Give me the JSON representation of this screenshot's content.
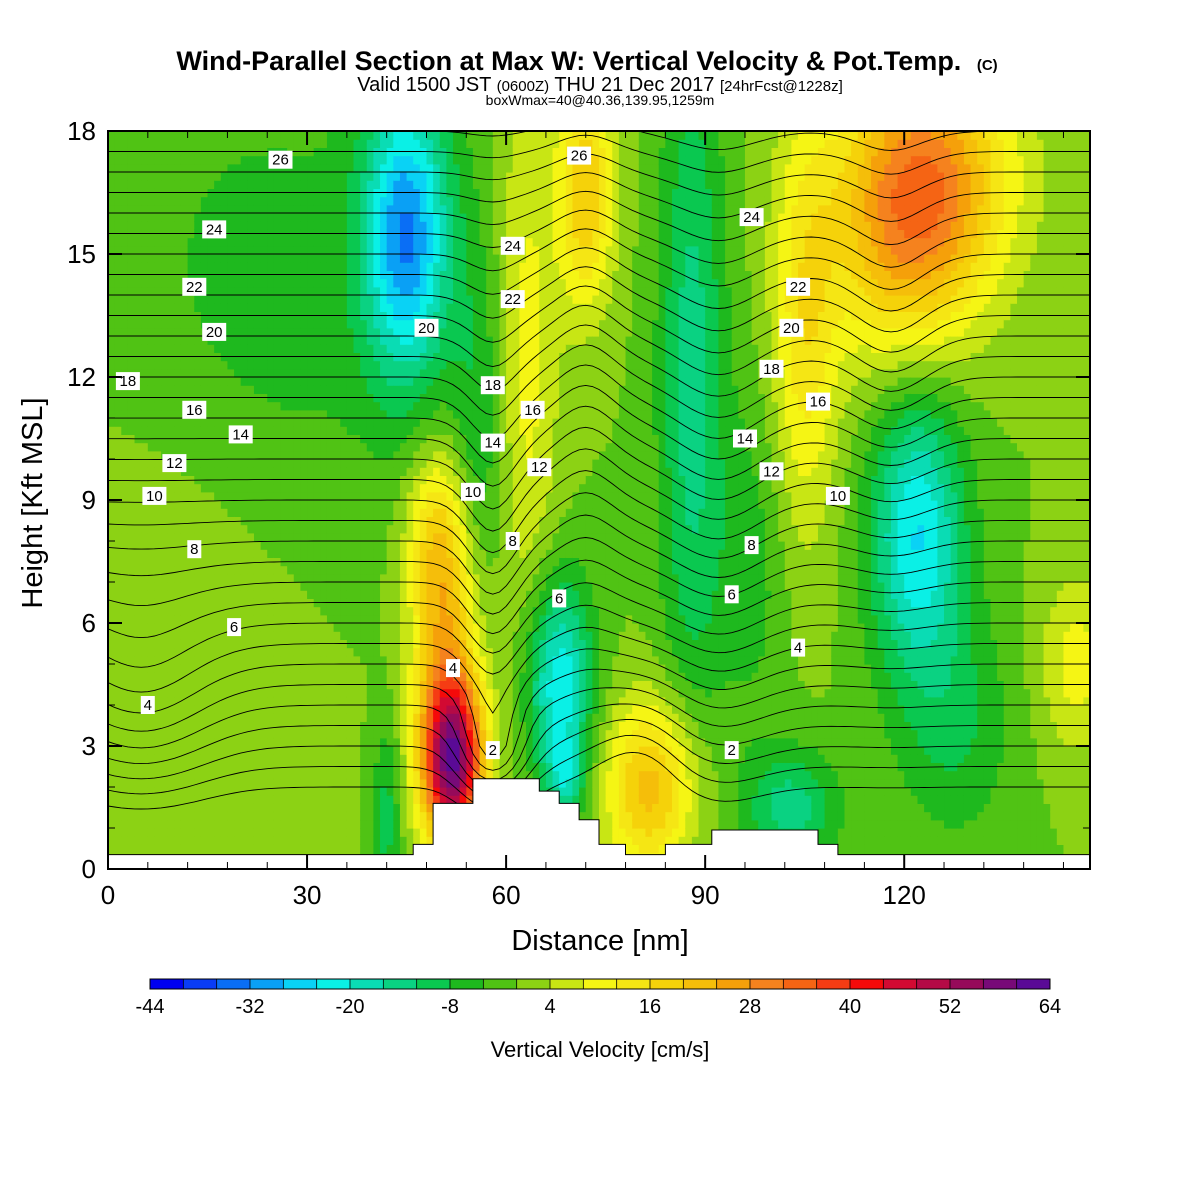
{
  "chart_data": {
    "type": "heatmap",
    "title": "Wind-Parallel Section at Max W: Vertical Velocity & Pot.Temp.",
    "title_suffix": "(C)",
    "subtitle_parts": {
      "p1": "Valid 1500 JST ",
      "p2": "(0600Z)",
      "p3": " THU 21 Dec 2017 ",
      "p4": "[24hrFcst@1228z]"
    },
    "subtitle2": "boxWmax=40@40.36,139.95,1259m",
    "xlabel": "Distance [nm]",
    "ylabel": "Height [Kft MSL]",
    "xlim": [
      0,
      148
    ],
    "ylim": [
      0,
      18
    ],
    "x_ticks": [
      0,
      30,
      60,
      90,
      120
    ],
    "y_ticks": [
      0,
      3,
      6,
      9,
      12,
      15,
      18
    ],
    "colorbar": {
      "label": "Vertical Velocity [cm/s]",
      "min": -44,
      "step": 4,
      "tick_labels": [
        "-44",
        "-32",
        "-20",
        "-8",
        "4",
        "16",
        "28",
        "40",
        "52",
        "64"
      ],
      "colors": [
        "#0000f0",
        "#0a3cf5",
        "#0a6ef5",
        "#0aa0f5",
        "#0ad2f5",
        "#0af0e6",
        "#0adcb4",
        "#0ad282",
        "#0ac850",
        "#1eb91e",
        "#50c314",
        "#8cd214",
        "#c8e614",
        "#f5f514",
        "#f5e614",
        "#f5d20a",
        "#f5be0a",
        "#f5a00a",
        "#f5821e",
        "#f56414",
        "#f53c14",
        "#f50a0a",
        "#d20a32",
        "#b40a46",
        "#960a5a",
        "#780a78",
        "#5a0a96"
      ]
    },
    "terrain_kft": [
      [
        0,
        0.35
      ],
      [
        46,
        0.35
      ],
      [
        46,
        0.6
      ],
      [
        49,
        0.6
      ],
      [
        49,
        1.6
      ],
      [
        55,
        1.6
      ],
      [
        55,
        2.2
      ],
      [
        65,
        2.2
      ],
      [
        65,
        1.9
      ],
      [
        68,
        1.9
      ],
      [
        68,
        1.6
      ],
      [
        71,
        1.6
      ],
      [
        71,
        1.2
      ],
      [
        74,
        1.2
      ],
      [
        74,
        0.6
      ],
      [
        78,
        0.6
      ],
      [
        78,
        0.35
      ],
      [
        84,
        0.35
      ],
      [
        84,
        0.6
      ],
      [
        91,
        0.6
      ],
      [
        91,
        0.95
      ],
      [
        107,
        0.95
      ],
      [
        107,
        0.6
      ],
      [
        110,
        0.6
      ],
      [
        110,
        0.35
      ],
      [
        148,
        0.35
      ]
    ],
    "velocity_features": [
      {
        "x": 52,
        "y": 2.6,
        "sx": 3.2,
        "sy": 1.4,
        "amp": 52
      },
      {
        "x": 51,
        "y": 5.6,
        "sx": 3.5,
        "sy": 2.6,
        "amp": 22
      },
      {
        "x": 49,
        "y": 8.2,
        "sx": 3.0,
        "sy": 1.4,
        "amp": 10
      },
      {
        "x": 82,
        "y": 2.0,
        "sx": 5.0,
        "sy": 1.5,
        "amp": 22
      },
      {
        "x": 72,
        "y": 16.5,
        "sx": 3.0,
        "sy": 2.0,
        "amp": 20
      },
      {
        "x": 63,
        "y": 12.5,
        "sx": 3.5,
        "sy": 5.0,
        "amp": 10
      },
      {
        "x": 105,
        "y": 13.0,
        "sx": 3.5,
        "sy": 3.5,
        "amp": 14
      },
      {
        "x": 123,
        "y": 17.0,
        "sx": 9.0,
        "sy": 2.0,
        "amp": 28
      },
      {
        "x": 120,
        "y": 14.5,
        "sx": 8.0,
        "sy": 2.0,
        "amp": 14
      },
      {
        "x": 146,
        "y": 5.0,
        "sx": 4.0,
        "sy": 1.5,
        "amp": 10
      },
      {
        "x": 8,
        "y": 5.0,
        "sx": 14.0,
        "sy": 5.0,
        "amp": 4
      },
      {
        "x": 45,
        "y": 15.5,
        "sx": 4.5,
        "sy": 2.5,
        "amp": -30
      },
      {
        "x": 56,
        "y": 10.5,
        "sx": 3.0,
        "sy": 3.5,
        "amp": -8
      },
      {
        "x": 68,
        "y": 4.5,
        "sx": 3.5,
        "sy": 1.8,
        "amp": -24
      },
      {
        "x": 69,
        "y": 2.2,
        "sx": 2.0,
        "sy": 0.7,
        "amp": -12
      },
      {
        "x": 88,
        "y": 12.0,
        "sx": 3.5,
        "sy": 6.0,
        "amp": -14
      },
      {
        "x": 122,
        "y": 8.2,
        "sx": 5.0,
        "sy": 2.5,
        "amp": -24
      },
      {
        "x": 103,
        "y": 1.5,
        "sx": 5.0,
        "sy": 1.0,
        "amp": -14
      },
      {
        "x": 25,
        "y": 14.0,
        "sx": 18.0,
        "sy": 4.0,
        "amp": -6
      },
      {
        "x": 42,
        "y": 1.3,
        "sx": 1.5,
        "sy": 1.6,
        "amp": -10
      },
      {
        "x": 128,
        "y": 3.5,
        "sx": 6.0,
        "sy": 2.0,
        "amp": -8
      },
      {
        "x": 97,
        "y": 7.5,
        "sx": 4.0,
        "sy": 3.0,
        "amp": -6
      }
    ],
    "theta_levels": [
      2,
      4,
      6,
      8,
      10,
      12,
      14,
      16,
      18,
      20,
      22,
      24,
      26
    ],
    "contour_labels": [
      {
        "text": "26",
        "x": 26,
        "y": 17.3
      },
      {
        "text": "26",
        "x": 71,
        "y": 17.4
      },
      {
        "text": "24",
        "x": 16,
        "y": 15.6
      },
      {
        "text": "24",
        "x": 61,
        "y": 15.2
      },
      {
        "text": "24",
        "x": 97,
        "y": 15.9
      },
      {
        "text": "22",
        "x": 13,
        "y": 14.2
      },
      {
        "text": "22",
        "x": 61,
        "y": 13.9
      },
      {
        "text": "22",
        "x": 104,
        "y": 14.2
      },
      {
        "text": "20",
        "x": 16,
        "y": 13.1
      },
      {
        "text": "20",
        "x": 48,
        "y": 13.2
      },
      {
        "text": "20",
        "x": 103,
        "y": 13.2
      },
      {
        "text": "18",
        "x": 3,
        "y": 11.9
      },
      {
        "text": "18",
        "x": 58,
        "y": 11.8
      },
      {
        "text": "18",
        "x": 100,
        "y": 12.2
      },
      {
        "text": "16",
        "x": 13,
        "y": 11.2
      },
      {
        "text": "16",
        "x": 64,
        "y": 11.2
      },
      {
        "text": "16",
        "x": 107,
        "y": 11.4
      },
      {
        "text": "14",
        "x": 20,
        "y": 10.6
      },
      {
        "text": "14",
        "x": 58,
        "y": 10.4
      },
      {
        "text": "14",
        "x": 96,
        "y": 10.5
      },
      {
        "text": "12",
        "x": 10,
        "y": 9.9
      },
      {
        "text": "12",
        "x": 65,
        "y": 9.8
      },
      {
        "text": "12",
        "x": 100,
        "y": 9.7
      },
      {
        "text": "10",
        "x": 7,
        "y": 9.1
      },
      {
        "text": "10",
        "x": 55,
        "y": 9.2
      },
      {
        "text": "10",
        "x": 110,
        "y": 9.1
      },
      {
        "text": "8",
        "x": 13,
        "y": 7.8
      },
      {
        "text": "8",
        "x": 61,
        "y": 8.0
      },
      {
        "text": "8",
        "x": 97,
        "y": 7.9
      },
      {
        "text": "6",
        "x": 19,
        "y": 5.9
      },
      {
        "text": "6",
        "x": 68,
        "y": 6.6
      },
      {
        "text": "6",
        "x": 94,
        "y": 6.7
      },
      {
        "text": "4",
        "x": 6,
        "y": 4.0
      },
      {
        "text": "4",
        "x": 52,
        "y": 4.9
      },
      {
        "text": "4",
        "x": 104,
        "y": 5.4
      },
      {
        "text": "2",
        "x": 58,
        "y": 2.9
      },
      {
        "text": "2",
        "x": 94,
        "y": 2.9
      }
    ]
  }
}
